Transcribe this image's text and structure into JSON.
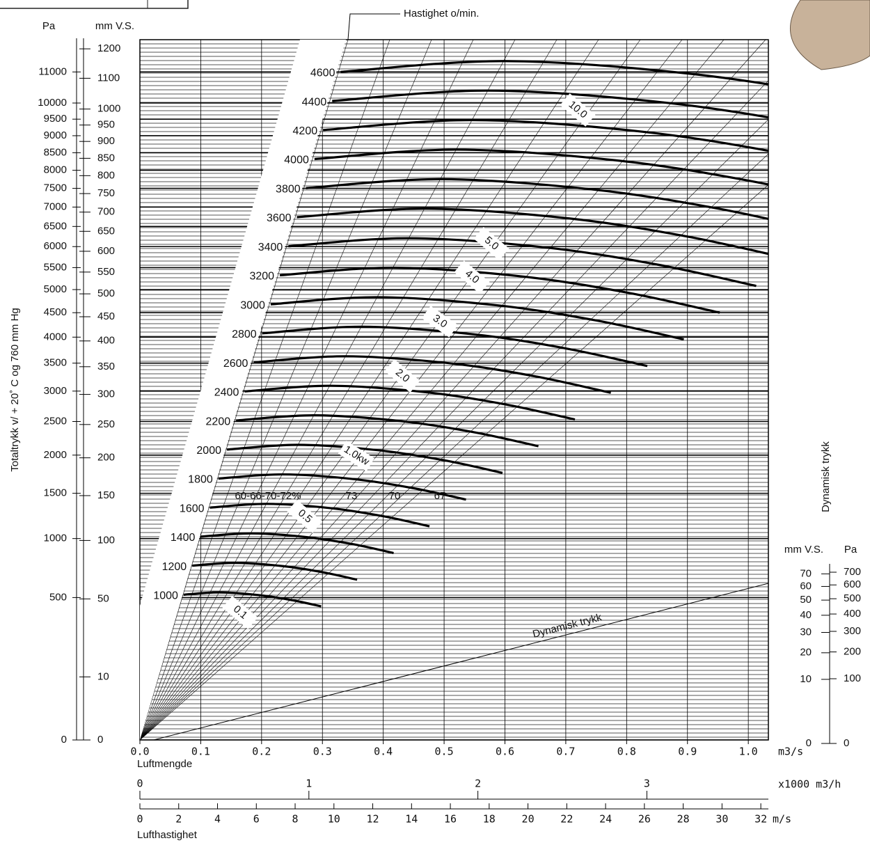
{
  "chart_data": {
    "type": "fan-curve",
    "title": "Hastighet o/min.",
    "y_label": "Totaltrykk v/ + 20˚ C og 760 mm Hg",
    "y_unit": "Pa",
    "y2_unit": "mm V.S.",
    "yscale": "sqrt",
    "ylim": [
      0,
      12088
    ],
    "yticks": [
      0,
      500,
      1000,
      1500,
      2000,
      2500,
      3000,
      3500,
      4000,
      4500,
      5000,
      5500,
      6000,
      6500,
      7000,
      7500,
      8000,
      8500,
      9000,
      9500,
      10000,
      11000
    ],
    "y2lim": [
      0,
      1232
    ],
    "y2ticks": [
      0,
      10,
      50,
      100,
      150,
      200,
      250,
      300,
      350,
      400,
      450,
      500,
      550,
      600,
      650,
      700,
      750,
      800,
      850,
      900,
      950,
      1000,
      1100,
      1200
    ],
    "x_label": "Luftmengde",
    "x_unit": "m3/s",
    "xlim": [
      0,
      1.033
    ],
    "xticks": [
      {
        "value": 0,
        "label": "0.0"
      },
      0.1,
      0.2,
      0.3,
      0.4,
      0.5,
      0.6,
      0.7,
      0.8,
      0.9,
      {
        "value": 1,
        "label": "1.0"
      }
    ],
    "x2_unit": "x1000  m3/h",
    "x2lim": [
      0,
      3.719
    ],
    "x2ticks": [
      0,
      1,
      2,
      3
    ],
    "x3_label": "Lufthastighet",
    "x3_unit": "m/s",
    "x3lim": [
      0,
      32.39
    ],
    "x3ticks": [
      0,
      2,
      4,
      6,
      8,
      10,
      12,
      14,
      16,
      18,
      20,
      22,
      24,
      26,
      28,
      30,
      32
    ],
    "grid": true,
    "series": [
      {
        "name": "1000",
        "color": "#000000",
        "x": [
          0.072,
          0.13,
          0.196,
          0.25,
          0.298
        ],
        "values": [
          520,
          537,
          517,
          482,
          440
        ]
      },
      {
        "name": "1200",
        "color": "#000000",
        "x": [
          0.086,
          0.157,
          0.235,
          0.3,
          0.357
        ],
        "values": [
          749,
          773,
          745,
          694,
          633
        ]
      },
      {
        "name": "1400",
        "color": "#000000",
        "x": [
          0.1,
          0.183,
          0.274,
          0.35,
          0.417
        ],
        "values": [
          1019,
          1052,
          1014,
          945,
          861
        ]
      },
      {
        "name": "1600",
        "color": "#000000",
        "x": [
          0.115,
          0.209,
          0.313,
          0.4,
          0.476
        ],
        "values": [
          1331,
          1374,
          1325,
          1234,
          1125
        ]
      },
      {
        "name": "1800",
        "color": "#000000",
        "x": [
          0.129,
          0.235,
          0.352,
          0.45,
          0.536
        ],
        "values": [
          1684,
          1739,
          1677,
          1562,
          1424
        ]
      },
      {
        "name": "2000",
        "color": "#000000",
        "x": [
          0.143,
          0.261,
          0.391,
          0.5,
          0.596
        ],
        "values": [
          2079,
          2147,
          2070,
          1928,
          1758
        ]
      },
      {
        "name": "2200",
        "color": "#000000",
        "x": [
          0.158,
          0.287,
          0.43,
          0.55,
          0.655
        ],
        "values": [
          2516,
          2598,
          2505,
          2333,
          2127
        ]
      },
      {
        "name": "2400",
        "color": "#000000",
        "x": [
          0.172,
          0.313,
          0.47,
          0.6,
          0.715
        ],
        "values": [
          2994,
          3092,
          2981,
          2777,
          2532
        ]
      },
      {
        "name": "2600",
        "color": "#000000",
        "x": [
          0.187,
          0.339,
          0.509,
          0.65,
          0.774
        ],
        "values": [
          3514,
          3629,
          3498,
          3259,
          2971
        ]
      },
      {
        "name": "2800",
        "color": "#000000",
        "x": [
          0.201,
          0.365,
          0.548,
          0.7,
          0.834
        ],
        "values": [
          4076,
          4209,
          4057,
          3779,
          3446
        ]
      },
      {
        "name": "3000",
        "color": "#000000",
        "x": [
          0.215,
          0.391,
          0.587,
          0.75,
          0.894
        ],
        "values": [
          4679,
          4832,
          4657,
          4338,
          3956
        ]
      },
      {
        "name": "3200",
        "color": "#000000",
        "x": [
          0.23,
          0.417,
          0.626,
          0.8,
          0.953
        ],
        "values": [
          5323,
          5497,
          5299,
          4936,
          4501
        ]
      },
      {
        "name": "3400",
        "color": "#000000",
        "x": [
          0.244,
          0.443,
          0.665,
          0.85,
          1.013
        ],
        "values": [
          6009,
          6206,
          5982,
          5572,
          5081
        ]
      },
      {
        "name": "3600",
        "color": "#000000",
        "x": [
          0.258,
          0.47,
          0.704,
          0.9,
          1.072
        ],
        "values": [
          6737,
          6958,
          6707,
          6247,
          5696
        ]
      },
      {
        "name": "3800",
        "color": "#000000",
        "x": [
          0.273,
          0.496,
          0.743,
          0.95,
          1.132
        ],
        "values": [
          7507,
          7752,
          7472,
          6961,
          6347
        ]
      },
      {
        "name": "4000",
        "color": "#000000",
        "x": [
          0.287,
          0.522,
          0.783,
          1.0,
          1.191
        ],
        "values": [
          8318,
          8590,
          8280,
          7713,
          7032
        ]
      },
      {
        "name": "4200",
        "color": "#000000",
        "x": [
          0.301,
          0.548,
          0.822,
          1.05,
          1.251
        ],
        "values": [
          9170,
          9470,
          9128,
          8503,
          7753
        ]
      },
      {
        "name": "4400",
        "color": "#000000",
        "x": [
          0.316,
          0.574,
          0.861,
          1.1,
          1.31
        ],
        "values": [
          10064,
          10394,
          10018,
          9332,
          8509
        ]
      },
      {
        "name": "4600",
        "color": "#000000",
        "x": [
          0.33,
          0.6,
          0.9,
          1.15,
          1.37
        ],
        "values": [
          11000,
          11360,
          10950,
          10200,
          9300
        ]
      }
    ],
    "dynamic": {
      "title": "Dynamisk trykk",
      "line_label": "Dynamisk trykk",
      "mm_unit": "mm V.S.",
      "pa_unit": "Pa",
      "pa_lim": [
        0,
        770
      ],
      "pa_ticks": [
        0,
        100,
        200,
        300,
        400,
        500,
        600,
        700
      ],
      "mm_lim": [
        0,
        78.5
      ],
      "mm_ticks": [
        0,
        10,
        20,
        30,
        40,
        50,
        60,
        70
      ],
      "x": [
        0,
        1.033
      ],
      "values": [
        0,
        612
      ],
      "color": "#000000"
    },
    "power_labels": [
      "0.1",
      "0.5",
      "1.0kw",
      "2.0",
      "3.0",
      "4.0",
      "5.0",
      "10.0"
    ],
    "efficiency_labels": [
      "60-66-70-72%",
      "73",
      "70",
      "67"
    ]
  }
}
